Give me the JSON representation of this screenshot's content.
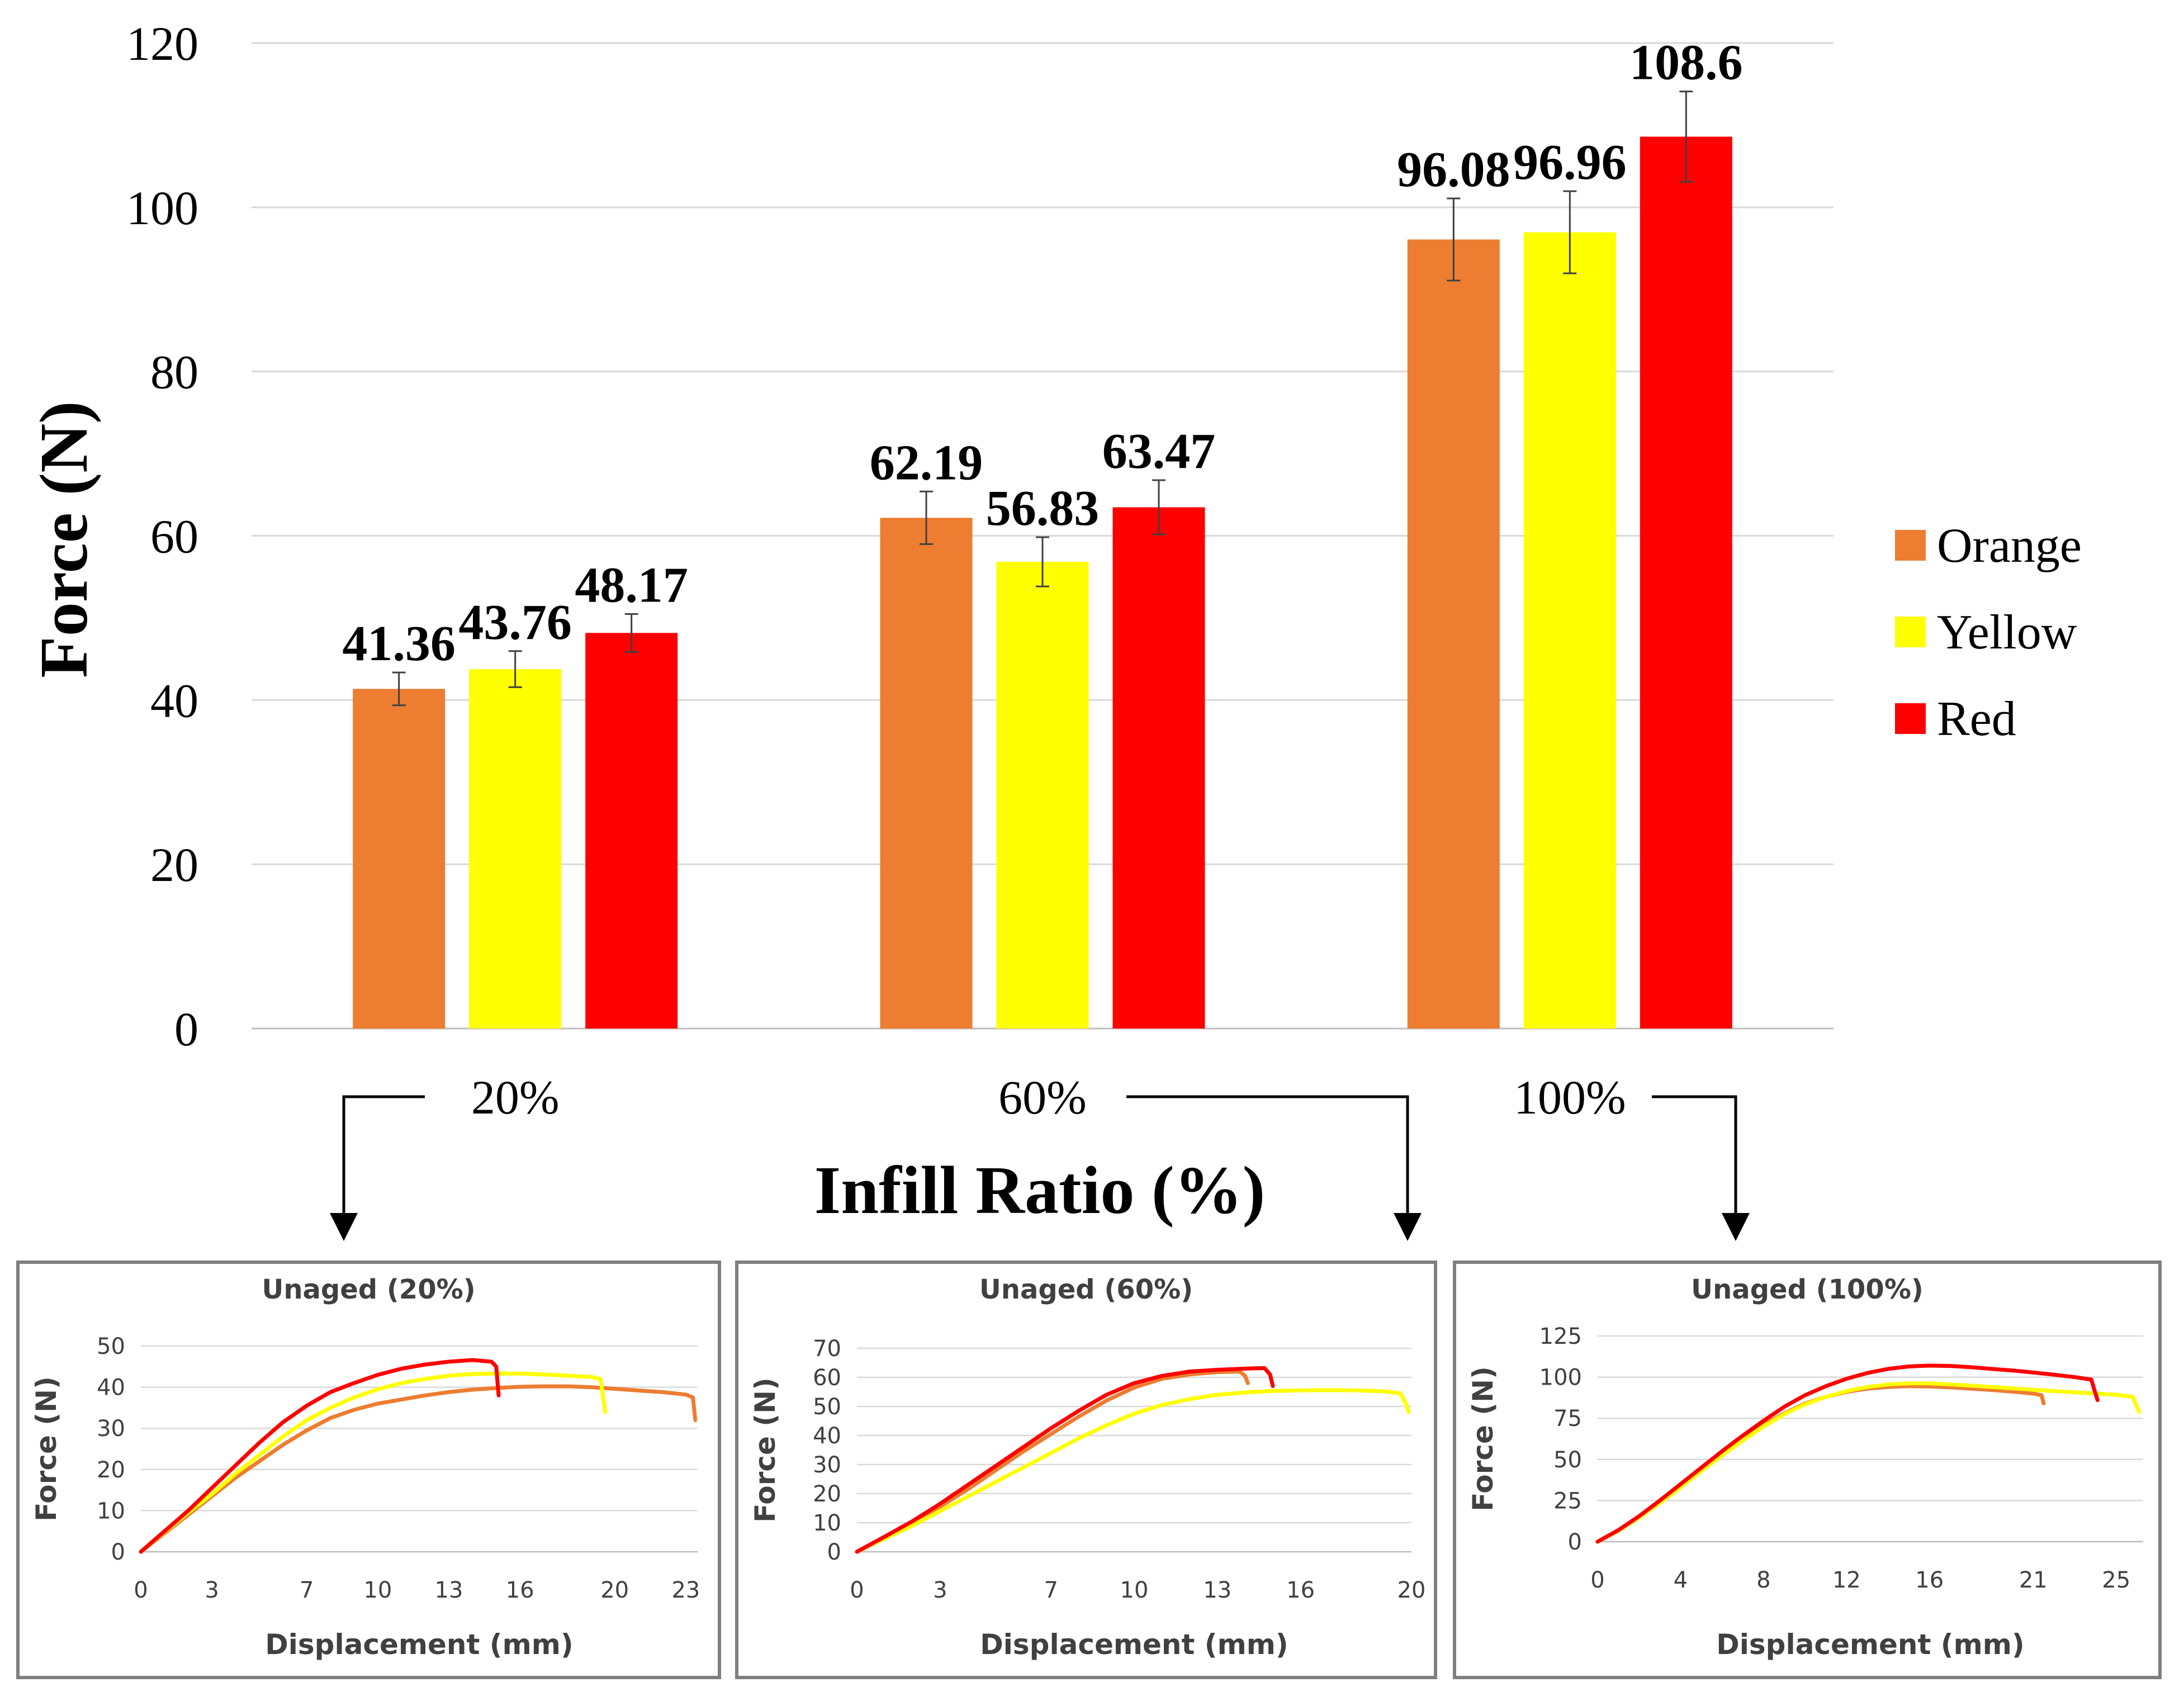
{
  "chart_data": [
    {
      "type": "bar",
      "title": "",
      "xlabel": "Infill Ratio (%)",
      "ylabel": "Force (N)",
      "ylim": [
        0,
        120
      ],
      "yticks": [
        "0",
        "20",
        "40",
        "60",
        "80",
        "100",
        "120"
      ],
      "grid": true,
      "legend_position": "right",
      "categories": [
        "20%",
        "60%",
        "100%"
      ],
      "series": [
        {
          "name": "Orange",
          "color": "#ED7D31",
          "values": [
            41.36,
            62.19,
            96.08
          ],
          "labels": [
            "41.36",
            "62.19",
            "96.08"
          ],
          "errors": [
            2.0,
            3.2,
            5.0
          ]
        },
        {
          "name": "Yellow",
          "color": "#FFFF00",
          "values": [
            43.76,
            56.83,
            96.96
          ],
          "labels": [
            "43.76",
            "56.83",
            "96.96"
          ],
          "errors": [
            2.2,
            3.0,
            5.0
          ]
        },
        {
          "name": "Red",
          "color": "#FF0000",
          "values": [
            48.17,
            63.47,
            108.6
          ],
          "labels": [
            "48.17",
            "63.47",
            "108.6"
          ],
          "errors": [
            2.3,
            3.3,
            5.5
          ]
        }
      ]
    },
    {
      "type": "line",
      "title": "Unaged (20%)",
      "xlabel": "Displacement (mm)",
      "ylabel": "Force (N)",
      "xlim": [
        0,
        23.5
      ],
      "ylim": [
        0,
        50
      ],
      "xticks": [
        "0",
        "3",
        "7",
        "10",
        "13",
        "16",
        "20",
        "23"
      ],
      "yticks": [
        "0",
        "10",
        "20",
        "30",
        "40",
        "50"
      ],
      "series": [
        {
          "name": "Orange",
          "color": "#ED7D31",
          "x": [
            0,
            1,
            2,
            3,
            4,
            5,
            6,
            7,
            8,
            9,
            10,
            11,
            12,
            13,
            14,
            15,
            16,
            17,
            18,
            19,
            20,
            21,
            22,
            23,
            23.3,
            23.4
          ],
          "y": [
            0,
            4.5,
            9,
            13.5,
            18,
            22,
            26,
            29.5,
            32.5,
            34.5,
            36,
            37,
            38,
            38.8,
            39.4,
            39.8,
            40.1,
            40.2,
            40.2,
            40,
            39.6,
            39.2,
            38.8,
            38.2,
            37.5,
            32
          ]
        },
        {
          "name": "Yellow",
          "color": "#FFFF00",
          "x": [
            0,
            1,
            2,
            3,
            4,
            5,
            6,
            7,
            8,
            9,
            10,
            11,
            12,
            13,
            14,
            15,
            16,
            17,
            18,
            19,
            19.4,
            19.5,
            19.6
          ],
          "y": [
            0,
            4.8,
            9.5,
            14,
            19,
            23.5,
            28,
            32,
            35,
            37.5,
            39.5,
            41,
            42,
            42.8,
            43.2,
            43.3,
            43.3,
            43.1,
            42.8,
            42.5,
            42,
            38,
            34
          ]
        },
        {
          "name": "Red",
          "color": "#FF0000",
          "x": [
            0,
            1,
            2,
            3,
            4,
            5,
            6,
            7,
            8,
            9,
            10,
            11,
            12,
            13,
            14,
            14.8,
            15,
            15.1
          ],
          "y": [
            0,
            5,
            10,
            15.5,
            21,
            26.5,
            31.5,
            35.5,
            38.8,
            41,
            43,
            44.5,
            45.5,
            46.2,
            46.6,
            46.2,
            45,
            38
          ]
        }
      ]
    },
    {
      "type": "line",
      "title": "Unaged (60%)",
      "xlabel": "Displacement (mm)",
      "ylabel": "Force (N)",
      "xlim": [
        0,
        20
      ],
      "ylim": [
        0,
        70
      ],
      "xticks": [
        "0",
        "3",
        "7",
        "10",
        "13",
        "16",
        "20"
      ],
      "yticks": [
        "0",
        "10",
        "20",
        "30",
        "40",
        "50",
        "60",
        "70"
      ],
      "series": [
        {
          "name": "Orange",
          "color": "#ED7D31",
          "x": [
            0,
            1,
            2,
            3,
            4,
            5,
            6,
            7,
            8,
            9,
            10,
            11,
            12,
            13,
            13.8,
            14,
            14.1
          ],
          "y": [
            0,
            5,
            10,
            15.5,
            21.5,
            28,
            34.5,
            40.5,
            46.5,
            52,
            56.5,
            59.5,
            61,
            61.8,
            62,
            60.5,
            58
          ]
        },
        {
          "name": "Yellow",
          "color": "#FFFF00",
          "x": [
            0,
            1,
            2,
            3,
            4,
            5,
            6,
            7,
            8,
            9,
            10,
            11,
            12,
            13,
            14,
            15,
            16,
            17,
            18,
            19,
            19.6,
            19.8,
            19.9
          ],
          "y": [
            0,
            4.5,
            9,
            14,
            19,
            24,
            29,
            34,
            39,
            43.5,
            47.5,
            50.5,
            52.5,
            54,
            54.8,
            55.3,
            55.5,
            55.6,
            55.5,
            55.2,
            54.5,
            51,
            48
          ]
        },
        {
          "name": "Red",
          "color": "#FF0000",
          "x": [
            0,
            1,
            2,
            3,
            4,
            5,
            6,
            7,
            8,
            9,
            10,
            11,
            12,
            13,
            14,
            14.7,
            14.9,
            15
          ],
          "y": [
            0,
            5.2,
            10.5,
            16.5,
            23,
            29.5,
            36,
            42.5,
            48.5,
            54,
            58,
            60.5,
            62,
            62.6,
            63,
            63.2,
            61,
            57
          ]
        }
      ]
    },
    {
      "type": "line",
      "title": "Unaged (100%)",
      "xlabel": "Displacement (mm)",
      "ylabel": "Force (N)",
      "xlim": [
        0,
        26.3
      ],
      "ylim": [
        0,
        125
      ],
      "xticks": [
        "0",
        "4",
        "8",
        "12",
        "16",
        "21",
        "25"
      ],
      "yticks": [
        "0",
        "25",
        "50",
        "75",
        "100",
        "125"
      ],
      "series": [
        {
          "name": "Orange",
          "color": "#ED7D31",
          "x": [
            0,
            1,
            2,
            3,
            4,
            5,
            6,
            7,
            8,
            9,
            10,
            11,
            12,
            13,
            14,
            15,
            16,
            17,
            18,
            19,
            20,
            21,
            21.4,
            21.5
          ],
          "y": [
            0,
            7,
            15,
            24,
            34,
            44,
            54,
            63,
            71,
            78,
            84,
            88,
            91,
            93,
            94,
            94.5,
            94.3,
            93.8,
            93,
            92.2,
            91.2,
            90,
            89,
            84
          ]
        },
        {
          "name": "Yellow",
          "color": "#FFFF00",
          "x": [
            0,
            1,
            2,
            3,
            4,
            5,
            6,
            7,
            8,
            9,
            10,
            11,
            12,
            13,
            14,
            15,
            16,
            17,
            18,
            19,
            20,
            21,
            22,
            23,
            24,
            25,
            25.8,
            26.1
          ],
          "y": [
            0,
            6.5,
            14.5,
            23.5,
            33,
            43,
            52.5,
            61.5,
            70,
            77.5,
            83.5,
            88,
            91.5,
            94,
            95.5,
            96.2,
            96.2,
            95.6,
            94.8,
            94,
            93.2,
            92.3,
            91.5,
            90.8,
            90,
            89.3,
            88,
            79
          ]
        },
        {
          "name": "Red",
          "color": "#FF0000",
          "x": [
            0,
            1,
            2,
            3,
            4,
            5,
            6,
            7,
            8,
            9,
            10,
            11,
            12,
            13,
            14,
            15,
            16,
            17,
            18,
            19,
            20,
            21,
            22,
            23,
            23.8,
            24,
            24.1
          ],
          "y": [
            0,
            7,
            15.5,
            25,
            35,
            45,
            55,
            64.5,
            73.5,
            82,
            89,
            94.5,
            99,
            102.5,
            105,
            106.5,
            107,
            106.8,
            106,
            105,
            104,
            102.8,
            101.5,
            100,
            98.5,
            90,
            86
          ]
        }
      ]
    }
  ]
}
